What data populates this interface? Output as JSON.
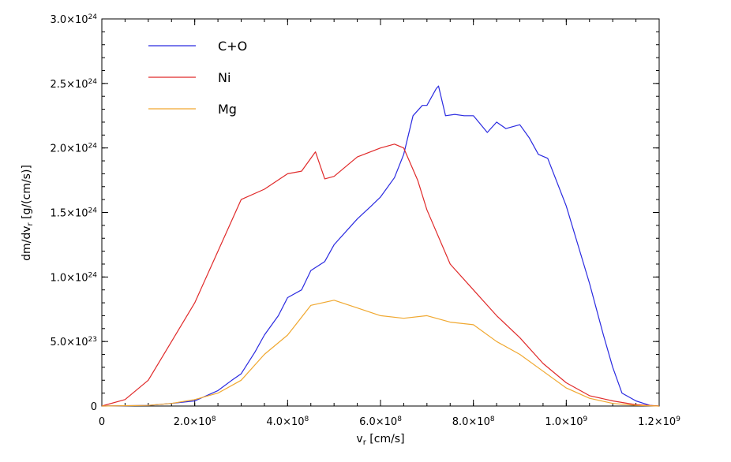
{
  "chart_data": {
    "type": "line",
    "title": "",
    "xlabel_main": "v",
    "xlabel_sub": "r",
    "xlabel_unit": " [cm/s]",
    "ylabel_main": "dm/dv",
    "ylabel_sub": "r",
    "ylabel_unit": " [g/(cm/s)]",
    "xlim": [
      0,
      1200000000.0
    ],
    "ylim": [
      0,
      3e+24
    ],
    "grid": false,
    "legend_position": "top-left",
    "x_ticks": [
      {
        "value": 0,
        "mant": "0",
        "exp": ""
      },
      {
        "value": 200000000.0,
        "mant": "2.0×10",
        "exp": "8"
      },
      {
        "value": 400000000.0,
        "mant": "4.0×10",
        "exp": "8"
      },
      {
        "value": 600000000.0,
        "mant": "6.0×10",
        "exp": "8"
      },
      {
        "value": 800000000.0,
        "mant": "8.0×10",
        "exp": "8"
      },
      {
        "value": 1000000000.0,
        "mant": "1.0×10",
        "exp": "9"
      },
      {
        "value": 1200000000.0,
        "mant": "1.2×10",
        "exp": "9"
      }
    ],
    "y_ticks": [
      {
        "value": 0,
        "mant": "0",
        "exp": ""
      },
      {
        "value": 5e+23,
        "mant": "5.0×10",
        "exp": "23"
      },
      {
        "value": 1e+24,
        "mant": "1.0×10",
        "exp": "24"
      },
      {
        "value": 1.5e+24,
        "mant": "1.5×10",
        "exp": "24"
      },
      {
        "value": 2e+24,
        "mant": "2.0×10",
        "exp": "24"
      },
      {
        "value": 2.5e+24,
        "mant": "2.5×10",
        "exp": "24"
      },
      {
        "value": 3e+24,
        "mant": "3.0×10",
        "exp": "24"
      }
    ],
    "series": [
      {
        "name": "C+O",
        "color": "#2a2ae0",
        "points": [
          [
            0,
            0
          ],
          [
            100000000.0,
            5e+21
          ],
          [
            150000000.0,
            2e+22
          ],
          [
            200000000.0,
            4e+22
          ],
          [
            250000000.0,
            1.2e+23
          ],
          [
            280000000.0,
            2e+23
          ],
          [
            300000000.0,
            2.5e+23
          ],
          [
            330000000.0,
            4.2e+23
          ],
          [
            350000000.0,
            5.5e+23
          ],
          [
            380000000.0,
            7e+23
          ],
          [
            400000000.0,
            8.4e+23
          ],
          [
            430000000.0,
            9e+23
          ],
          [
            450000000.0,
            1.05e+24
          ],
          [
            480000000.0,
            1.12e+24
          ],
          [
            500000000.0,
            1.25e+24
          ],
          [
            530000000.0,
            1.37e+24
          ],
          [
            550000000.0,
            1.45e+24
          ],
          [
            580000000.0,
            1.55e+24
          ],
          [
            600000000.0,
            1.62e+24
          ],
          [
            630000000.0,
            1.77e+24
          ],
          [
            650000000.0,
            1.95e+24
          ],
          [
            670000000.0,
            2.25e+24
          ],
          [
            690000000.0,
            2.33e+24
          ],
          [
            700000000.0,
            2.33e+24
          ],
          [
            720000000.0,
            2.46e+24
          ],
          [
            725000000.0,
            2.48e+24
          ],
          [
            740000000.0,
            2.25e+24
          ],
          [
            760000000.0,
            2.26e+24
          ],
          [
            780000000.0,
            2.25e+24
          ],
          [
            800000000.0,
            2.25e+24
          ],
          [
            830000000.0,
            2.12e+24
          ],
          [
            850000000.0,
            2.2e+24
          ],
          [
            870000000.0,
            2.15e+24
          ],
          [
            900000000.0,
            2.18e+24
          ],
          [
            920000000.0,
            2.08e+24
          ],
          [
            940000000.0,
            1.95e+24
          ],
          [
            960000000.0,
            1.92e+24
          ],
          [
            1000000000.0,
            1.55e+24
          ],
          [
            1050000000.0,
            9.5e+23
          ],
          [
            1080000000.0,
            5.5e+23
          ],
          [
            1100000000.0,
            3e+23
          ],
          [
            1120000000.0,
            1e+23
          ],
          [
            1150000000.0,
            4e+22
          ],
          [
            1180000000.0,
            5e+21
          ],
          [
            1200000000.0,
            0
          ]
        ]
      },
      {
        "name": "Ni",
        "color": "#e02a2a",
        "points": [
          [
            0,
            0
          ],
          [
            50000000.0,
            5e+22
          ],
          [
            100000000.0,
            2e+23
          ],
          [
            150000000.0,
            5e+23
          ],
          [
            200000000.0,
            8e+23
          ],
          [
            250000000.0,
            1.2e+24
          ],
          [
            300000000.0,
            1.6e+24
          ],
          [
            350000000.0,
            1.68e+24
          ],
          [
            400000000.0,
            1.8e+24
          ],
          [
            430000000.0,
            1.82e+24
          ],
          [
            460000000.0,
            1.97e+24
          ],
          [
            480000000.0,
            1.76e+24
          ],
          [
            500000000.0,
            1.78e+24
          ],
          [
            550000000.0,
            1.93e+24
          ],
          [
            600000000.0,
            2e+24
          ],
          [
            630000000.0,
            2.03e+24
          ],
          [
            650000000.0,
            2e+24
          ],
          [
            680000000.0,
            1.75e+24
          ],
          [
            700000000.0,
            1.52e+24
          ],
          [
            750000000.0,
            1.1e+24
          ],
          [
            800000000.0,
            9e+23
          ],
          [
            850000000.0,
            7e+23
          ],
          [
            900000000.0,
            5.3e+23
          ],
          [
            950000000.0,
            3.3e+23
          ],
          [
            1000000000.0,
            1.8e+23
          ],
          [
            1050000000.0,
            8e+22
          ],
          [
            1100000000.0,
            4e+22
          ],
          [
            1150000000.0,
            1e+22
          ],
          [
            1200000000.0,
            0
          ]
        ]
      },
      {
        "name": "Mg",
        "color": "#f0a830",
        "points": [
          [
            0,
            0
          ],
          [
            100000000.0,
            5e+21
          ],
          [
            150000000.0,
            2e+22
          ],
          [
            200000000.0,
            5e+22
          ],
          [
            250000000.0,
            1e+23
          ],
          [
            300000000.0,
            2e+23
          ],
          [
            350000000.0,
            4e+23
          ],
          [
            400000000.0,
            5.5e+23
          ],
          [
            450000000.0,
            7.8e+23
          ],
          [
            500000000.0,
            8.2e+23
          ],
          [
            550000000.0,
            7.6e+23
          ],
          [
            600000000.0,
            7e+23
          ],
          [
            650000000.0,
            6.8e+23
          ],
          [
            700000000.0,
            7e+23
          ],
          [
            750000000.0,
            6.5e+23
          ],
          [
            800000000.0,
            6.3e+23
          ],
          [
            850000000.0,
            5e+23
          ],
          [
            900000000.0,
            4e+23
          ],
          [
            950000000.0,
            2.7e+23
          ],
          [
            1000000000.0,
            1.4e+23
          ],
          [
            1050000000.0,
            6e+22
          ],
          [
            1100000000.0,
            2e+22
          ],
          [
            1150000000.0,
            5e+21
          ],
          [
            1200000000.0,
            0
          ]
        ]
      }
    ]
  }
}
